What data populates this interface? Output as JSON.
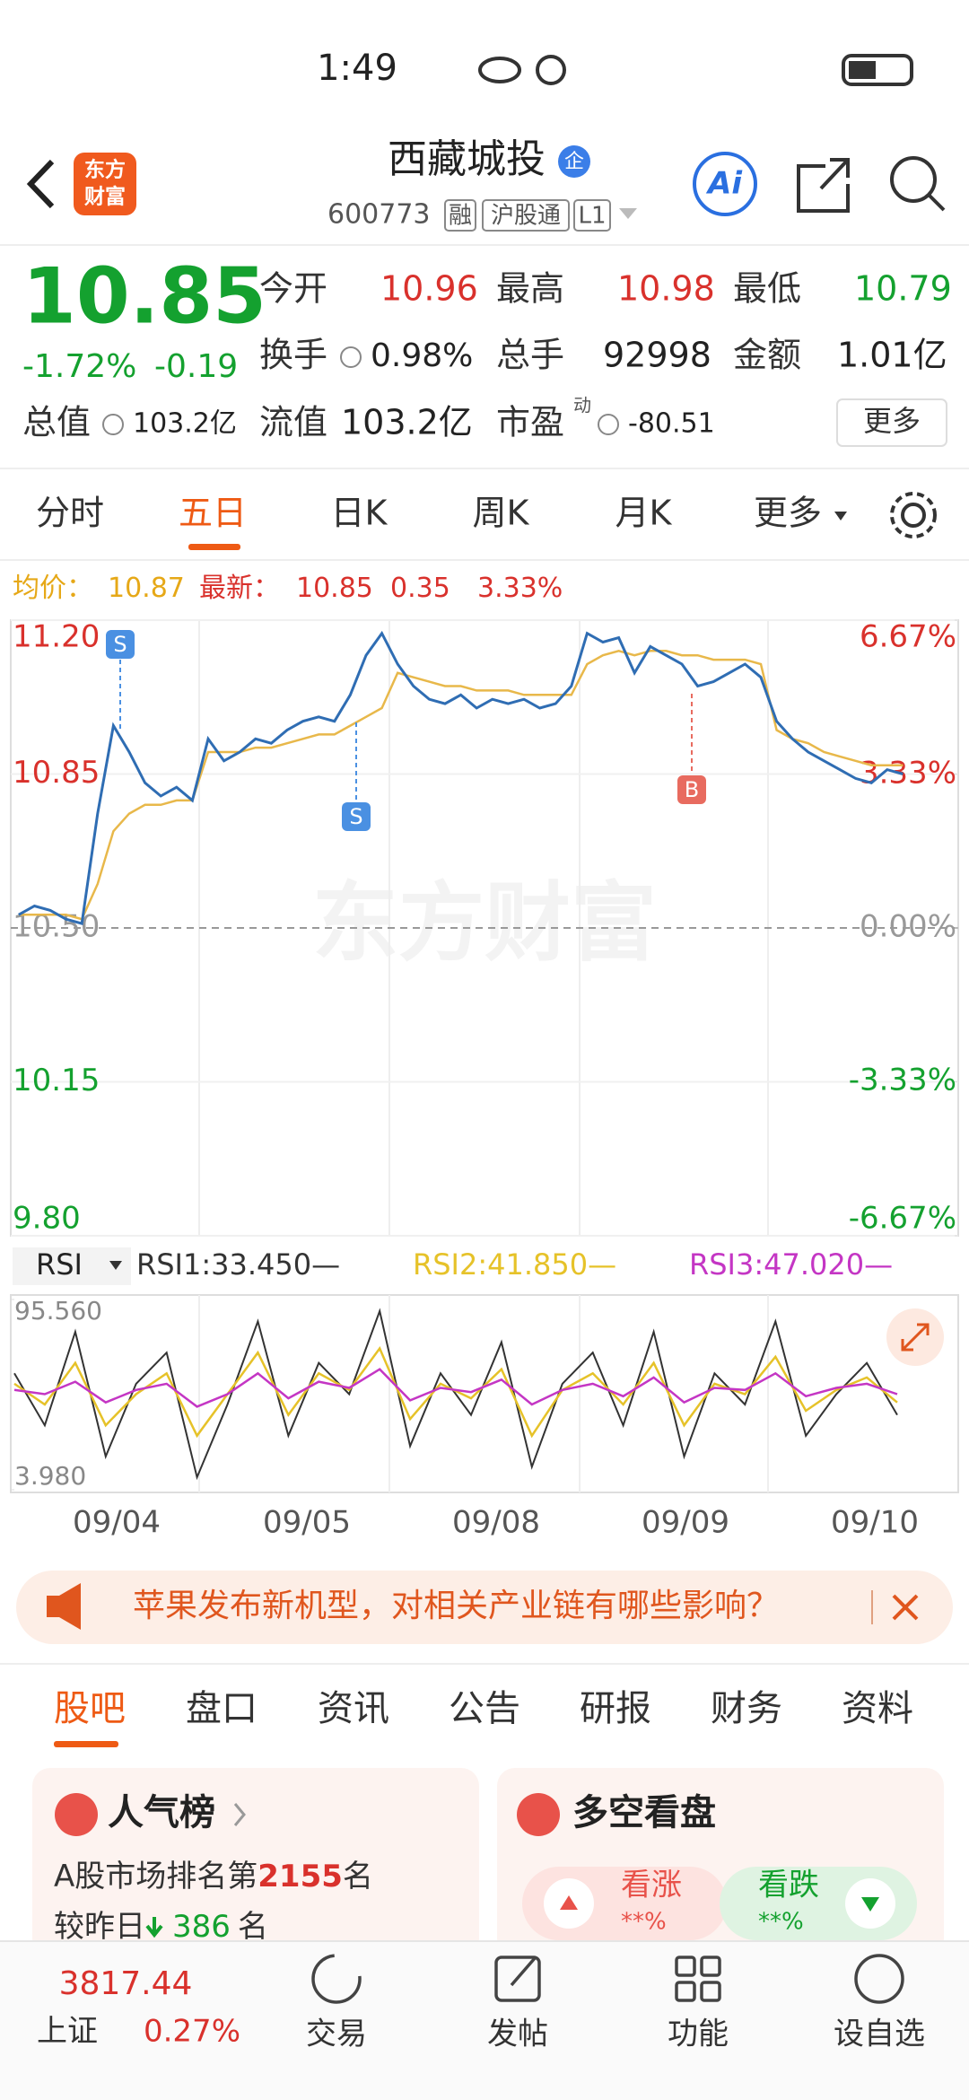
{
  "status_bar": {
    "time": "1:49"
  },
  "header": {
    "logo": [
      "东方",
      "财富"
    ],
    "title": "西藏城投",
    "badge": "企",
    "code": "600773",
    "tags": [
      "融",
      "沪股通",
      "L1"
    ],
    "ai": "Ai"
  },
  "quote": {
    "price": "10.85",
    "change_pct": "-1.72%",
    "change": "-0.19",
    "stats": [
      {
        "label": "今开",
        "value": "10.96"
      },
      {
        "label": "最高",
        "value": "10.98"
      },
      {
        "label": "最低",
        "value": "10.79"
      },
      {
        "label": "换手",
        "value": "0.98%"
      },
      {
        "label": "总手",
        "value": "92998"
      },
      {
        "label": "金额",
        "value": "1.01亿"
      },
      {
        "label": "总值",
        "value": "103.2亿"
      },
      {
        "label": "流值",
        "value": "103.2亿"
      },
      {
        "label": "市盈",
        "note": "动",
        "value": "-80.51"
      }
    ],
    "more": "更多"
  },
  "period_tabs": [
    "分时",
    "五日",
    "日K",
    "周K",
    "月K",
    "更多"
  ],
  "chart": {
    "type": "line",
    "avg_label": "均价：",
    "avg": "10.87",
    "last_label": "最新：",
    "last": "10.85",
    "change": "0.35",
    "change_pct": "3.33%",
    "watermark": "东方财富",
    "ylim": [
      9.8,
      11.2
    ],
    "yticks": [
      {
        "value": 11.2,
        "label": "11.20"
      },
      {
        "value": 10.85,
        "label": "10.85"
      },
      {
        "value": 10.5,
        "label": "10.50"
      },
      {
        "value": 10.15,
        "label": "10.15"
      },
      {
        "value": 9.8,
        "label": "9.80"
      }
    ],
    "y2lim": [
      -6.67,
      6.67
    ],
    "y2ticks": [
      {
        "value": 6.67,
        "label": "6.67%"
      },
      {
        "value": 3.33,
        "label": "3.33%"
      },
      {
        "value": 0,
        "label": "0.00%"
      },
      {
        "value": -3.33,
        "label": "-3.33%"
      },
      {
        "value": -6.67,
        "label": "-6.67%"
      }
    ],
    "series": [
      {
        "color": "#2f6db3",
        "values": [
          10.53,
          10.55,
          10.54,
          10.52,
          10.51,
          10.76,
          10.96,
          10.9,
          10.83,
          10.8,
          10.82,
          10.79,
          10.93,
          10.88,
          10.9,
          10.93,
          10.92,
          10.95,
          10.97,
          10.98,
          10.97,
          11.03,
          11.12,
          11.17,
          11.1,
          11.05,
          11.02,
          11.01,
          11.03,
          11.0,
          11.02,
          11.01,
          11.02,
          11.0,
          11.01,
          11.05,
          11.17,
          11.15,
          11.16,
          11.08,
          11.14,
          11.12,
          11.1,
          11.05,
          11.06,
          11.08,
          11.1,
          11.07,
          10.97,
          10.93,
          10.9,
          10.88,
          10.86,
          10.84,
          10.83,
          10.86,
          10.85
        ]
      },
      {
        "color": "#e8b84a",
        "values": [
          10.53,
          10.53,
          10.53,
          10.53,
          10.52,
          10.6,
          10.72,
          10.76,
          10.78,
          10.78,
          10.79,
          10.79,
          10.9,
          10.9,
          10.9,
          10.91,
          10.91,
          10.92,
          10.93,
          10.94,
          10.94,
          10.96,
          10.98,
          11.0,
          11.08,
          11.07,
          11.06,
          11.05,
          11.05,
          11.04,
          11.04,
          11.04,
          11.03,
          11.03,
          11.03,
          11.03,
          11.1,
          11.12,
          11.13,
          11.12,
          11.13,
          11.13,
          11.12,
          11.12,
          11.11,
          11.11,
          11.11,
          11.1,
          10.95,
          10.93,
          10.92,
          10.9,
          10.89,
          10.88,
          10.87,
          10.87,
          10.87
        ]
      }
    ],
    "annotations": [
      {
        "label": "S"
      },
      {
        "label": "S"
      },
      {
        "label": "B"
      }
    ],
    "dates": [
      "09/04",
      "09/05",
      "09/08",
      "09/09",
      "09/10"
    ]
  },
  "rsi": {
    "type": "line",
    "selector": "RSI",
    "ylim": [
      3.98,
      95.56
    ],
    "yticks": [
      {
        "value": 95.56,
        "label": "95.560"
      },
      {
        "value": 3.98,
        "label": "3.980"
      }
    ],
    "series": [
      {
        "name": "RSI1:33.450—",
        "color": "#333333",
        "values": [
          60,
          35,
          80,
          20,
          55,
          70,
          10,
          45,
          85,
          30,
          65,
          50,
          90,
          25,
          60,
          40,
          75,
          15,
          55,
          70,
          35,
          80,
          20,
          60,
          45,
          85,
          30,
          50,
          65,
          40
        ]
      },
      {
        "name": "RSI2:41.850—",
        "color": "#e6c229",
        "values": [
          55,
          45,
          65,
          35,
          50,
          60,
          30,
          50,
          70,
          40,
          60,
          52,
          72,
          38,
          55,
          48,
          62,
          30,
          52,
          60,
          45,
          65,
          35,
          55,
          50,
          68,
          42,
          52,
          58,
          46
        ]
      },
      {
        "name": "RSI3:47.020—",
        "color": "#c436c4",
        "values": [
          52,
          50,
          56,
          46,
          52,
          55,
          44,
          50,
          60,
          48,
          56,
          53,
          62,
          47,
          53,
          51,
          57,
          45,
          52,
          55,
          49,
          58,
          46,
          53,
          52,
          60,
          49,
          53,
          55,
          50
        ]
      }
    ]
  },
  "banner": {
    "text": "苹果发布新机型，对相关产业链有哪些影响？"
  },
  "section_tabs": [
    "股吧",
    "盘口",
    "资讯",
    "公告",
    "研报",
    "财务",
    "资料"
  ],
  "cards": {
    "popularity": {
      "title": "人气榜",
      "line1": [
        "A股市场排名第",
        "2155",
        "名"
      ],
      "line2": [
        "较昨日",
        "386",
        "名"
      ]
    },
    "sentiment": {
      "title": "多空看盘",
      "bull": "看涨",
      "bull_pct": "**%",
      "bear": "看跌",
      "bear_pct": "**%"
    }
  },
  "bottom_nav": {
    "index_value": "3817.44",
    "index_name": "上证",
    "index_change": "0.27%",
    "items": [
      "交易",
      "发帖",
      "功能",
      "设自选"
    ]
  }
}
